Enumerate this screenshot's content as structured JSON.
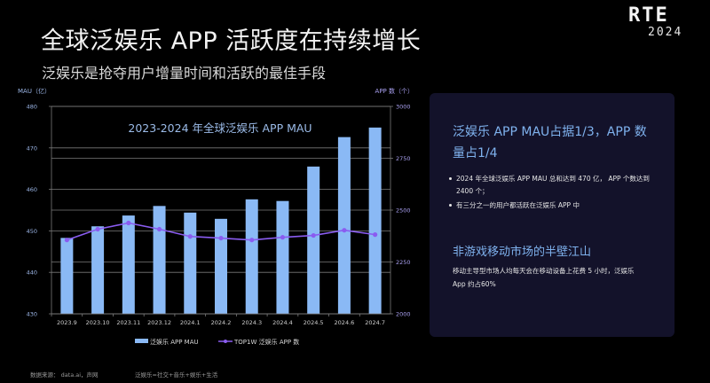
{
  "header": {
    "title": "全球泛娱乐 APP 活跃度在持续增长",
    "subtitle": "泛娱乐是抢夺用户增量时间和活跃的最佳手段"
  },
  "logo": {
    "main": "RTE",
    "year": "2024"
  },
  "colors": {
    "background": "#000000",
    "bar": "#8ab9f5",
    "line": "#8a5cf0",
    "gridline": "#7a7a7a",
    "axis_text_left": "#9bb5e6",
    "axis_text_right": "#a9a0f0",
    "chart_title": "#9bbbe8",
    "panel_bg": "#13122a",
    "panel_heading": "#7fb2ee"
  },
  "chart_data": {
    "type": "bar",
    "title": "2023-2024 年全球泛娱乐 APP MAU",
    "categories": [
      "2023.9",
      "2023.10",
      "2023.11",
      "2023.12",
      "2024.1",
      "2024.2",
      "2024.3",
      "2024.4",
      "2024.5",
      "2024.6",
      "2024.7"
    ],
    "series": [
      {
        "name": "泛娱乐 APP MAU",
        "type": "bar",
        "axis": "left",
        "values": [
          448.3,
          451.1,
          453.7,
          456.0,
          454.4,
          452.9,
          457.6,
          457.2,
          465.5,
          472.6,
          474.9
        ]
      },
      {
        "name": "TOP1W 泛娱乐 APP 数",
        "type": "line",
        "axis": "right",
        "values": [
          2356,
          2408,
          2438,
          2408,
          2373,
          2365,
          2356,
          2369,
          2378,
          2403,
          2382
        ]
      }
    ],
    "ylabel": "MAU（亿）",
    "ylim": [
      430,
      480
    ],
    "yticks": [
      430,
      440,
      450,
      460,
      470,
      480
    ],
    "y2label": "APP 数（个）",
    "y2lim": [
      2000,
      3000
    ],
    "y2ticks": [
      2000,
      2250,
      2500,
      2750,
      3000
    ],
    "grid": true,
    "legend": "bottom"
  },
  "panel": {
    "heading": "泛娱乐 APP MAU占据1/3，APP 数量占1/4",
    "bullets": [
      "2024 年全球泛娱乐 APP MAU 总和达到 470 亿， APP 个数达到 2400 个；",
      "有三分之一的用户都活跃在泛娱乐 APP 中"
    ],
    "heading2": "非游戏移动市场的半壁江山",
    "paragraph": "移动主导型市场人均每天会在移动设备上花费 5 小时，泛娱乐 App 约占60%"
  },
  "footer": {
    "source": "数据来源： data.ai，声网",
    "note": "泛娱乐=社交+音乐+娱乐+生活"
  }
}
